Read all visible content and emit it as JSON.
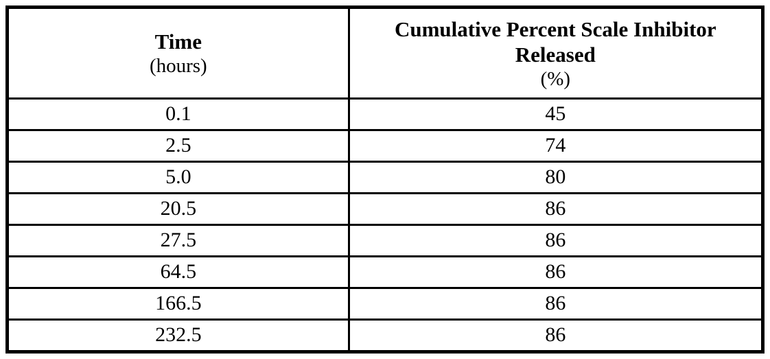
{
  "table": {
    "columns": [
      {
        "title": "Time",
        "subtitle": "(hours)"
      },
      {
        "title": "Cumulative Percent Scale Inhibitor Released",
        "subtitle": "(%)"
      }
    ],
    "rows": [
      {
        "time": "0.1",
        "percent": "45"
      },
      {
        "time": "2.5",
        "percent": "74"
      },
      {
        "time": "5.0",
        "percent": "80"
      },
      {
        "time": "20.5",
        "percent": "86"
      },
      {
        "time": "27.5",
        "percent": "86"
      },
      {
        "time": "64.5",
        "percent": "86"
      },
      {
        "time": "166.5",
        "percent": "86"
      },
      {
        "time": "232.5",
        "percent": "86"
      }
    ]
  },
  "colors": {
    "border": "#000000",
    "text": "#000000",
    "background": "#ffffff"
  }
}
